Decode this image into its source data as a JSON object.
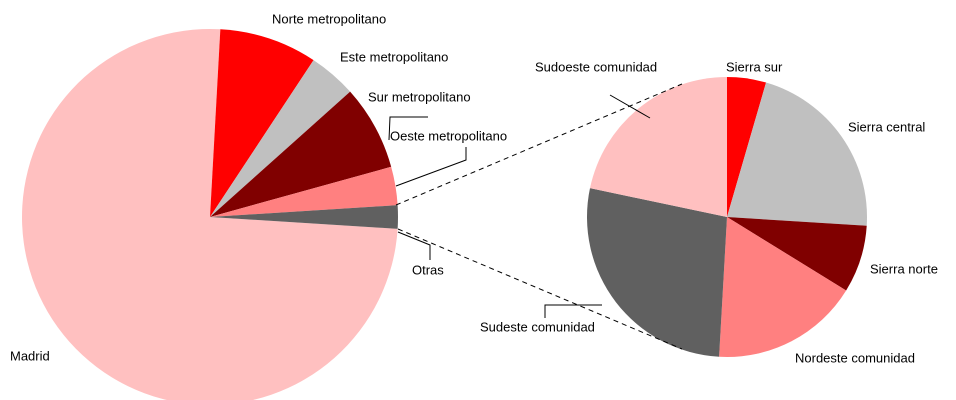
{
  "chart_data": [
    {
      "type": "pie",
      "categories": [
        "Madrid",
        "Norte metropolitano",
        "Este metropolitano",
        "Sur metropolitano",
        "Oeste metropolitano",
        "Otras"
      ],
      "values": [
        74.8,
        8.4,
        4.1,
        7.3,
        3.3,
        2.0
      ],
      "colors": [
        "#ffc0c0",
        "#ff0000",
        "#c0c0c0",
        "#800000",
        "#ff8080",
        "#606060"
      ]
    },
    {
      "type": "pie",
      "categories": [
        "Sierra sur",
        "Sierra central",
        "Sierra norte",
        "Nordeste comunidad",
        "Sudeste comunidad",
        "Sudoeste comunidad"
      ],
      "values": [
        4.5,
        21.5,
        7.8,
        17.1,
        27.4,
        21.7
      ],
      "colors": [
        "#ff0000",
        "#c0c0c0",
        "#800000",
        "#ff8080",
        "#606060",
        "#ffc0c0"
      ]
    }
  ]
}
